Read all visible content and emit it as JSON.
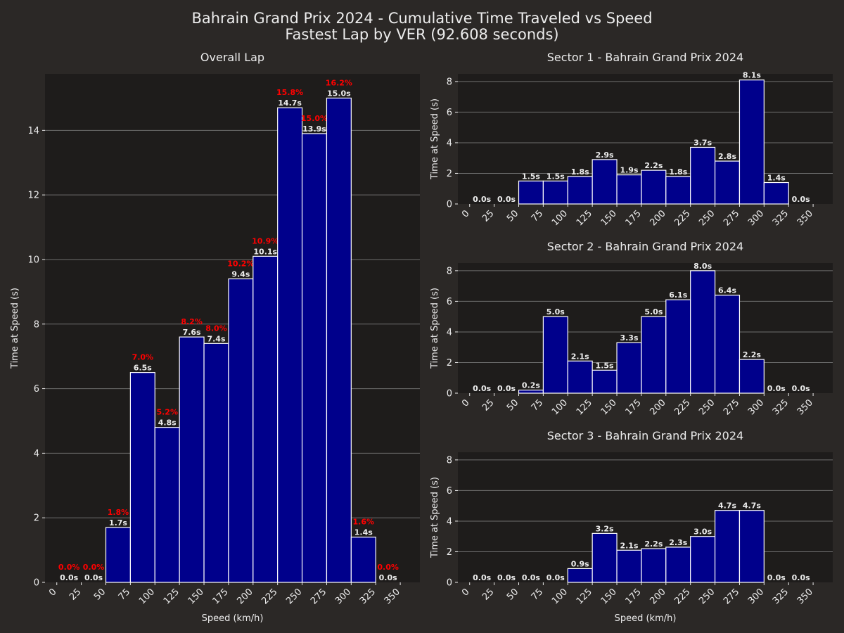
{
  "figure": {
    "title_line1": "Bahrain Grand Prix 2024 - Cumulative Time Traveled vs Speed",
    "title_line2": "Fastest Lap by VER (92.608 seconds)"
  },
  "colors": {
    "background": "#2b2826",
    "plot_background": "#1e1c1b",
    "bar_fill": "#00008b",
    "bar_edge": "#ffffff",
    "text": "#ececec",
    "percent_label": "#ff0000",
    "grid": "#6e6e6e"
  },
  "chart_data": [
    {
      "type": "bar",
      "title": "Overall Lap",
      "xlabel": "Speed (km/h)",
      "ylabel": "Time at Speed (s)",
      "bin_edges": [
        0,
        25,
        50,
        75,
        100,
        125,
        150,
        175,
        200,
        225,
        250,
        275,
        300,
        325,
        350
      ],
      "values": [
        0.0,
        0.0,
        1.7,
        6.5,
        4.8,
        7.6,
        7.4,
        9.4,
        10.1,
        14.7,
        13.9,
        15.0,
        1.4,
        0.0
      ],
      "value_labels": [
        "0.0s",
        "0.0s",
        "1.7s",
        "6.5s",
        "4.8s",
        "7.6s",
        "7.4s",
        "9.4s",
        "10.1s",
        "14.7s",
        "13.9s",
        "15.0s",
        "1.4s",
        "0.0s"
      ],
      "percent_labels": [
        "0.0%",
        "0.0%",
        "1.8%",
        "7.0%",
        "5.2%",
        "8.2%",
        "8.0%",
        "10.2%",
        "10.9%",
        "15.8%",
        "15.0%",
        "16.2%",
        "1.6%",
        "0.0%"
      ],
      "xticks": [
        "0",
        "25",
        "50",
        "75",
        "100",
        "125",
        "150",
        "175",
        "200",
        "225",
        "250",
        "275",
        "300",
        "325",
        "350"
      ],
      "yticks": [
        "0",
        "2",
        "4",
        "6",
        "8",
        "10",
        "12",
        "14"
      ],
      "xlim": [
        -12,
        370
      ],
      "ylim": [
        0,
        15.75
      ],
      "grid": "horizontal"
    },
    {
      "type": "bar",
      "title": "Sector 1 - Bahrain Grand Prix 2024",
      "xlabel": "",
      "ylabel": "Time at Speed (s)",
      "bin_edges": [
        0,
        25,
        50,
        75,
        100,
        125,
        150,
        175,
        200,
        225,
        250,
        275,
        300,
        325,
        350
      ],
      "values": [
        0.0,
        0.0,
        1.5,
        1.5,
        1.8,
        2.9,
        1.9,
        2.2,
        1.8,
        3.7,
        2.8,
        8.1,
        1.4,
        0.0
      ],
      "value_labels": [
        "0.0s",
        "0.0s",
        "1.5s",
        "1.5s",
        "1.8s",
        "2.9s",
        "1.9s",
        "2.2s",
        "1.8s",
        "3.7s",
        "2.8s",
        "8.1s",
        "1.4s",
        "0.0s"
      ],
      "xticks": [
        "0",
        "25",
        "50",
        "75",
        "100",
        "125",
        "150",
        "175",
        "200",
        "225",
        "250",
        "275",
        "300",
        "325",
        "350"
      ],
      "yticks": [
        "0",
        "2",
        "4",
        "6",
        "8"
      ],
      "xlim": [
        -12,
        370
      ],
      "ylim": [
        0,
        8.5
      ],
      "grid": "horizontal"
    },
    {
      "type": "bar",
      "title": "Sector 2 - Bahrain Grand Prix 2024",
      "xlabel": "",
      "ylabel": "Time at Speed (s)",
      "bin_edges": [
        0,
        25,
        50,
        75,
        100,
        125,
        150,
        175,
        200,
        225,
        250,
        275,
        300,
        325,
        350
      ],
      "values": [
        0.0,
        0.0,
        0.2,
        5.0,
        2.1,
        1.5,
        3.3,
        5.0,
        6.1,
        8.0,
        6.4,
        2.2,
        0.0,
        0.0
      ],
      "value_labels": [
        "0.0s",
        "0.0s",
        "0.2s",
        "5.0s",
        "2.1s",
        "1.5s",
        "3.3s",
        "5.0s",
        "6.1s",
        "8.0s",
        "6.4s",
        "2.2s",
        "0.0s",
        "0.0s"
      ],
      "xticks": [
        "0",
        "25",
        "50",
        "75",
        "100",
        "125",
        "150",
        "175",
        "200",
        "225",
        "250",
        "275",
        "300",
        "325",
        "350"
      ],
      "yticks": [
        "0",
        "2",
        "4",
        "6",
        "8"
      ],
      "xlim": [
        -12,
        370
      ],
      "ylim": [
        0,
        8.5
      ],
      "grid": "horizontal"
    },
    {
      "type": "bar",
      "title": "Sector 3 - Bahrain Grand Prix 2024",
      "xlabel": "Speed (km/h)",
      "ylabel": "Time at Speed (s)",
      "bin_edges": [
        0,
        25,
        50,
        75,
        100,
        125,
        150,
        175,
        200,
        225,
        250,
        275,
        300,
        325,
        350
      ],
      "values": [
        0.0,
        0.0,
        0.0,
        0.0,
        0.9,
        3.2,
        2.1,
        2.2,
        2.3,
        3.0,
        4.7,
        4.7,
        0.0,
        0.0
      ],
      "value_labels": [
        "0.0s",
        "0.0s",
        "0.0s",
        "0.0s",
        "0.9s",
        "3.2s",
        "2.1s",
        "2.2s",
        "2.3s",
        "3.0s",
        "4.7s",
        "4.7s",
        "0.0s",
        "0.0s"
      ],
      "xticks": [
        "0",
        "25",
        "50",
        "75",
        "100",
        "125",
        "150",
        "175",
        "200",
        "225",
        "250",
        "275",
        "300",
        "325",
        "350"
      ],
      "yticks": [
        "0",
        "2",
        "4",
        "6",
        "8"
      ],
      "xlim": [
        -12,
        370
      ],
      "ylim": [
        0,
        8.5
      ],
      "grid": "horizontal"
    }
  ]
}
